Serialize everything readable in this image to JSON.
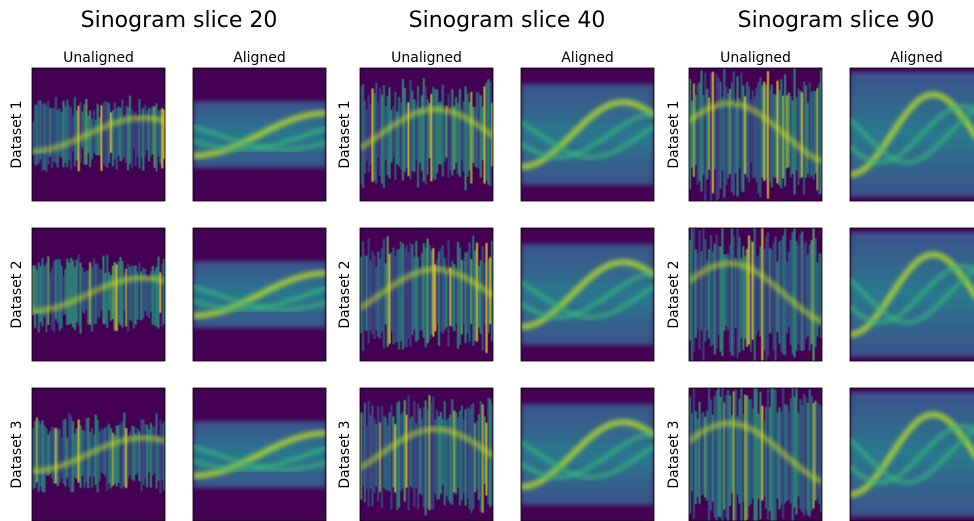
{
  "panels": [
    {
      "title": "Sinogram slice 20",
      "columns": [
        "Unaligned",
        "Aligned"
      ],
      "rows": [
        "Dataset 1",
        "Dataset 2",
        "Dataset 3"
      ]
    },
    {
      "title": "Sinogram slice 40",
      "columns": [
        "Unaligned",
        "Aligned"
      ],
      "rows": [
        "Dataset 1",
        "Dataset 2",
        "Dataset 3"
      ]
    },
    {
      "title": "Sinogram slice 90",
      "columns": [
        "Unaligned",
        "Aligned"
      ],
      "rows": [
        "Dataset 1",
        "Dataset 2",
        "Dataset 3"
      ]
    }
  ]
}
